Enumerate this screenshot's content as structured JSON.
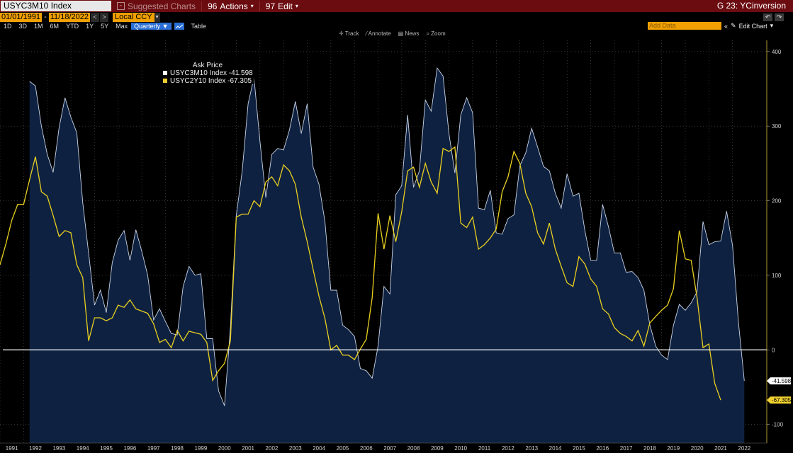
{
  "titlebar": {
    "ticker": "USYC3M10 Index",
    "suggested": "Suggested Charts",
    "actions": "Actions",
    "actions_code": "96",
    "edit": "Edit",
    "edit_code": "97",
    "page_code": "G 23: YCinversion"
  },
  "daterow": {
    "start": "01/01/1991",
    "dash": "-",
    "end": "11/18/2022",
    "currency": "Local CCY"
  },
  "periods": [
    "1D",
    "3D",
    "1M",
    "6M",
    "YTD",
    "1Y",
    "5Y",
    "Max"
  ],
  "frequency": "Quarterly",
  "table_label": "Table",
  "add_data": "Add Data",
  "edit_chart": "Edit Chart",
  "tools": [
    "Track",
    "Annotate",
    "News",
    "Zoom"
  ],
  "legend": {
    "header": "Ask Price",
    "items": [
      {
        "label": "USYC3M10 Index -41.598",
        "color": "#ffffff"
      },
      {
        "label": "USYC2Y10 Index -67.305",
        "color": "#f0d030"
      }
    ]
  },
  "last_labels": [
    "-41.598",
    "-67.305"
  ],
  "chart_data": {
    "type": "area",
    "x_start": 1991.0,
    "x_step": 0.25,
    "xlim": [
      1991.0,
      2023.45
    ],
    "ylim": [
      -125,
      415
    ],
    "y_ticks": [
      -100,
      0,
      100,
      200,
      300,
      400
    ],
    "x_ticks": [
      "1991",
      "1992",
      "1993",
      "1994",
      "1995",
      "1996",
      "1997",
      "1998",
      "1999",
      "2000",
      "2001",
      "2002",
      "2003",
      "2004",
      "2005",
      "2006",
      "2007",
      "2008",
      "2009",
      "2010",
      "2011",
      "2012",
      "2013",
      "2014",
      "2015",
      "2016",
      "2017",
      "2018",
      "2019",
      "2020",
      "2021",
      "2022"
    ],
    "zero_line": 0,
    "colors": {
      "area_fill": "#0f2140",
      "area_line": "#c8d4e8",
      "line2": "#e8d020",
      "zero": "#ffffff",
      "axis_text": "#cfcfcf"
    },
    "series": [
      {
        "name": "USYC3M10 Index",
        "x_first": 1992.25,
        "values": [
          360,
          354,
          300,
          262,
          238,
          298,
          338,
          312,
          291,
          198,
          130,
          60,
          80,
          50,
          117,
          147,
          160,
          120,
          161,
          132,
          100,
          40,
          55,
          38,
          22,
          20,
          85,
          112,
          100,
          102,
          15,
          15,
          -55,
          -75,
          30,
          180,
          240,
          330,
          365,
          280,
          204,
          262,
          270,
          268,
          295,
          333,
          290,
          330,
          245,
          222,
          172,
          80,
          80,
          33,
          27,
          18,
          -25,
          -28,
          -38,
          5,
          85,
          75,
          208,
          220,
          315,
          218,
          240,
          335,
          320,
          378,
          367,
          290,
          237,
          315,
          338,
          318,
          190,
          188,
          214,
          157,
          155,
          176,
          181,
          247,
          264,
          297,
          272,
          246,
          240,
          210,
          190,
          236,
          206,
          210,
          160,
          120,
          120,
          195,
          165,
          130,
          130,
          104,
          105,
          97,
          80,
          34,
          5,
          -7,
          -13,
          33,
          61,
          53,
          63,
          78,
          172,
          141,
          145,
          146,
          186,
          140,
          37,
          -41.598
        ]
      },
      {
        "name": "USYC2Y10 Index",
        "x_first": 1991.0,
        "values": [
          114,
          142,
          174,
          195,
          195,
          228,
          259,
          212,
          206,
          180,
          152,
          160,
          157,
          114,
          97,
          12,
          43,
          43,
          39,
          43,
          60,
          57,
          67,
          55,
          52,
          49,
          35,
          10,
          14,
          3,
          26,
          12,
          25,
          23,
          21,
          10,
          -41,
          -28,
          -18,
          12,
          178,
          182,
          182,
          200,
          192,
          225,
          232,
          220,
          248,
          240,
          222,
          178,
          145,
          108,
          72,
          42,
          0,
          6,
          -7,
          -7,
          -13,
          1,
          14,
          70,
          183,
          135,
          180,
          145,
          185,
          240,
          245,
          218,
          250,
          225,
          210,
          270,
          266,
          272,
          170,
          164,
          178,
          135,
          141,
          150,
          162,
          212,
          232,
          266,
          250,
          210,
          192,
          157,
          142,
          170,
          135,
          112,
          90,
          85,
          125,
          115,
          95,
          85,
          55,
          48,
          30,
          22,
          18,
          12,
          26,
          5,
          36,
          45,
          53,
          60,
          82,
          160,
          122,
          120,
          70,
          3,
          8,
          -45,
          -67.305
        ]
      }
    ]
  }
}
